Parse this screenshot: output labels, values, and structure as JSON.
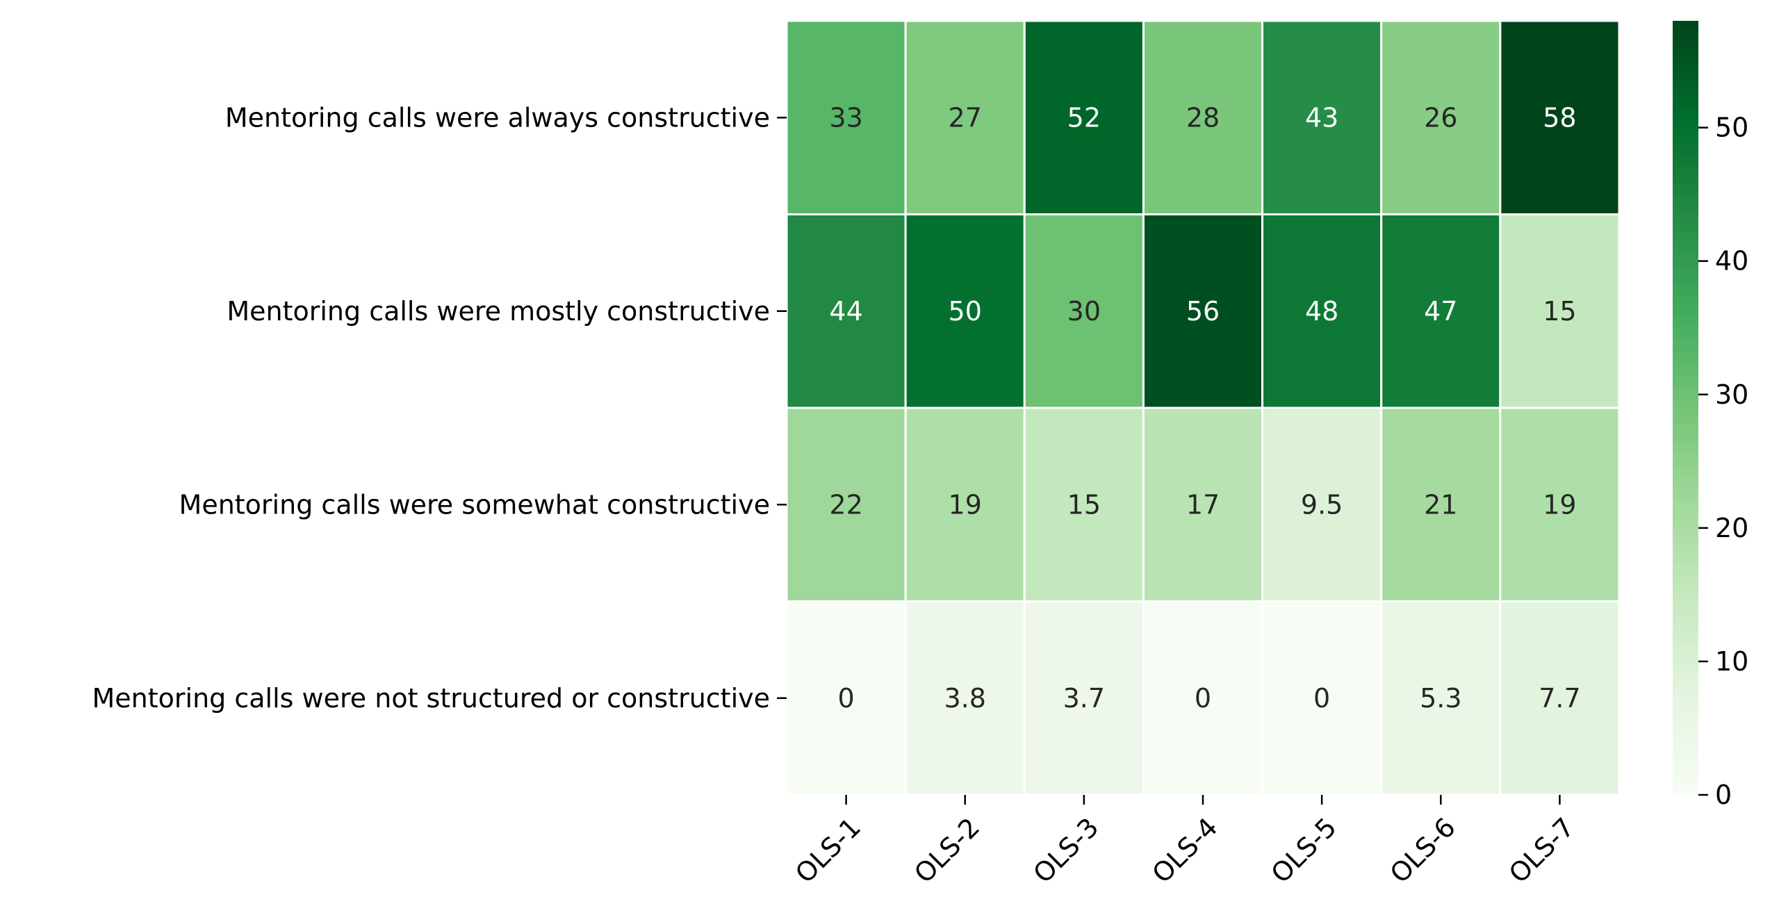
{
  "chart_data": {
    "type": "heatmap",
    "title": "",
    "xlabel": "",
    "ylabel": "",
    "x_categories": [
      "OLS-1",
      "OLS-2",
      "OLS-3",
      "OLS-4",
      "OLS-5",
      "OLS-6",
      "OLS-7"
    ],
    "y_categories": [
      "Mentoring calls were always constructive",
      "Mentoring calls were mostly constructive",
      "Mentoring calls were somewhat constructive",
      "Mentoring calls were not structured or constructive"
    ],
    "values": [
      [
        33,
        27,
        52,
        28,
        43,
        26,
        58
      ],
      [
        44,
        50,
        30,
        56,
        48,
        47,
        15
      ],
      [
        22,
        19,
        15,
        17,
        9.5,
        21,
        19
      ],
      [
        0,
        3.8,
        3.7,
        0,
        0,
        5.3,
        7.7
      ]
    ],
    "value_labels": [
      [
        "33",
        "27",
        "52",
        "28",
        "43",
        "26",
        "58"
      ],
      [
        "44",
        "50",
        "30",
        "56",
        "48",
        "47",
        "15"
      ],
      [
        "22",
        "19",
        "15",
        "17",
        "9.5",
        "21",
        "19"
      ],
      [
        "0",
        "3.8",
        "3.7",
        "0",
        "0",
        "5.3",
        "7.7"
      ]
    ],
    "colormap": "Greens",
    "color_range": [
      0,
      58
    ],
    "colorbar": {
      "ticks": [
        0,
        10,
        20,
        30,
        40,
        50
      ],
      "tick_labels": [
        "0",
        "10",
        "20",
        "30",
        "40",
        "50"
      ]
    }
  }
}
